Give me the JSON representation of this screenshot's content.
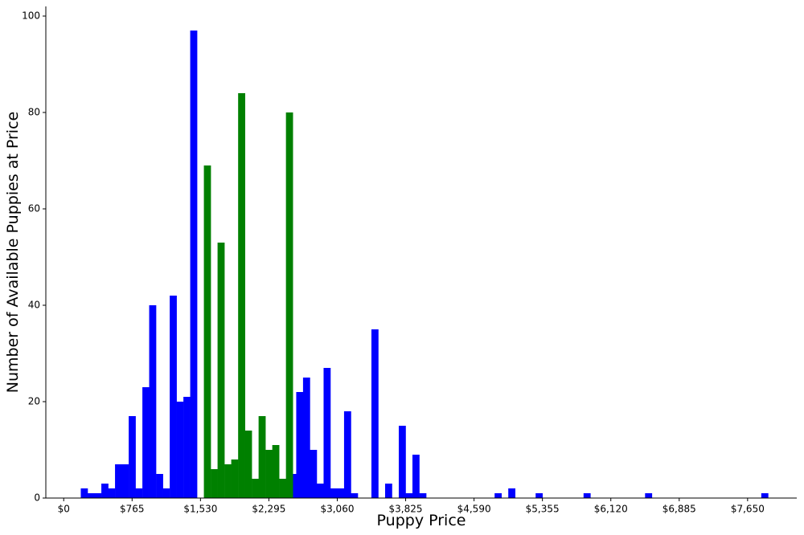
{
  "chart_data": {
    "type": "bar",
    "title": "",
    "xlabel": "Puppy Price",
    "ylabel": "Number of Available Puppies at Price",
    "xlim": [
      -200,
      8200
    ],
    "ylim": [
      0,
      102
    ],
    "bin_width": 76.5,
    "x_ticks": [
      0,
      765,
      1530,
      2295,
      3060,
      3825,
      4590,
      5355,
      6120,
      6885,
      7650
    ],
    "x_tick_labels": [
      "$0",
      "$765",
      "$1,530",
      "$2,295",
      "$3,060",
      "$3,825",
      "$4,590",
      "$5,355",
      "$6,120",
      "$6,885",
      "$7,650"
    ],
    "y_ticks": [
      0,
      20,
      40,
      60,
      80,
      100
    ],
    "y_tick_labels": [
      "0",
      "20",
      "40",
      "60",
      "80",
      "100"
    ],
    "grid": false,
    "series": [
      {
        "color": "#0000ff",
        "bins": [
          {
            "x": 191,
            "count": 2
          },
          {
            "x": 268,
            "count": 1
          },
          {
            "x": 344,
            "count": 1
          },
          {
            "x": 421,
            "count": 3
          },
          {
            "x": 497,
            "count": 2
          },
          {
            "x": 574,
            "count": 7
          },
          {
            "x": 650,
            "count": 7
          },
          {
            "x": 727,
            "count": 17
          },
          {
            "x": 803,
            "count": 2
          },
          {
            "x": 880,
            "count": 23
          },
          {
            "x": 956,
            "count": 40
          },
          {
            "x": 1033,
            "count": 5
          },
          {
            "x": 1109,
            "count": 2
          },
          {
            "x": 1186,
            "count": 42
          },
          {
            "x": 1262,
            "count": 20
          },
          {
            "x": 1339,
            "count": 21
          },
          {
            "x": 1415,
            "count": 97
          },
          {
            "x": 2524,
            "count": 5
          },
          {
            "x": 2601,
            "count": 22
          },
          {
            "x": 2677,
            "count": 25
          },
          {
            "x": 2754,
            "count": 10
          },
          {
            "x": 2830,
            "count": 3
          },
          {
            "x": 2907,
            "count": 27
          },
          {
            "x": 2983,
            "count": 2
          },
          {
            "x": 3060,
            "count": 2
          },
          {
            "x": 3136,
            "count": 18
          },
          {
            "x": 3213,
            "count": 1
          },
          {
            "x": 3442,
            "count": 35
          },
          {
            "x": 3595,
            "count": 3
          },
          {
            "x": 3748,
            "count": 15
          },
          {
            "x": 3825,
            "count": 1
          },
          {
            "x": 3901,
            "count": 9
          },
          {
            "x": 3978,
            "count": 1
          },
          {
            "x": 4820,
            "count": 1
          },
          {
            "x": 4973,
            "count": 2
          },
          {
            "x": 5279,
            "count": 1
          },
          {
            "x": 5815,
            "count": 1
          },
          {
            "x": 6503,
            "count": 1
          },
          {
            "x": 7803,
            "count": 1
          }
        ]
      },
      {
        "color": "#008000",
        "bins": [
          {
            "x": 1568,
            "count": 69
          },
          {
            "x": 1645,
            "count": 6
          },
          {
            "x": 1721,
            "count": 53
          },
          {
            "x": 1798,
            "count": 7
          },
          {
            "x": 1874,
            "count": 8
          },
          {
            "x": 1951,
            "count": 84
          },
          {
            "x": 2027,
            "count": 14
          },
          {
            "x": 2104,
            "count": 4
          },
          {
            "x": 2180,
            "count": 17
          },
          {
            "x": 2257,
            "count": 10
          },
          {
            "x": 2333,
            "count": 11
          },
          {
            "x": 2410,
            "count": 4
          },
          {
            "x": 2486,
            "count": 80
          }
        ]
      }
    ]
  }
}
